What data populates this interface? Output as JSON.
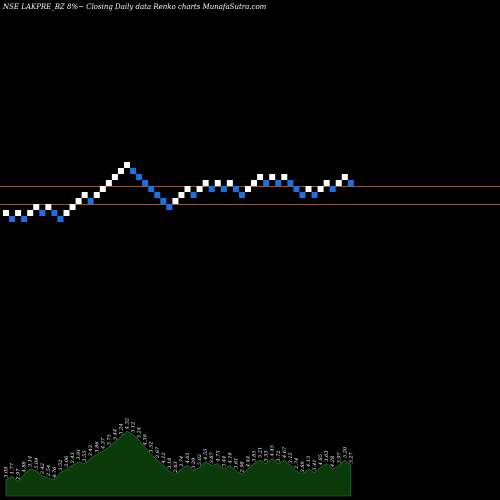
{
  "header": {
    "title": "NSE LAKPRE_BZ 8%~ Closing Daily data Renko charts MunafaSutra.com"
  },
  "colors": {
    "background": "#000000",
    "up_brick": "#ffffff",
    "down_brick": "#1e6fe0",
    "support_line": "#a0522d",
    "volume_fill": "#0a3a0a",
    "volume_stroke": "#2e7d32",
    "label": "#ffffff"
  },
  "chart_data": {
    "type": "renko",
    "title": "NSE LAKPRE_BZ 8%~ Closing Daily data Renko charts MunafaSutra.com",
    "brick_size_note": "8%",
    "bricks": [
      {
        "dir": "up",
        "level": 0
      },
      {
        "dir": "down",
        "level": -1
      },
      {
        "dir": "up",
        "level": 0
      },
      {
        "dir": "down",
        "level": -1
      },
      {
        "dir": "up",
        "level": 0
      },
      {
        "dir": "up",
        "level": 1
      },
      {
        "dir": "down",
        "level": 0
      },
      {
        "dir": "up",
        "level": 1
      },
      {
        "dir": "down",
        "level": 0
      },
      {
        "dir": "down",
        "level": -1
      },
      {
        "dir": "up",
        "level": 0
      },
      {
        "dir": "up",
        "level": 1
      },
      {
        "dir": "up",
        "level": 2
      },
      {
        "dir": "up",
        "level": 3
      },
      {
        "dir": "down",
        "level": 2
      },
      {
        "dir": "up",
        "level": 3
      },
      {
        "dir": "up",
        "level": 4
      },
      {
        "dir": "up",
        "level": 5
      },
      {
        "dir": "up",
        "level": 6
      },
      {
        "dir": "up",
        "level": 7
      },
      {
        "dir": "up",
        "level": 8
      },
      {
        "dir": "down",
        "level": 7
      },
      {
        "dir": "down",
        "level": 6
      },
      {
        "dir": "down",
        "level": 5
      },
      {
        "dir": "down",
        "level": 4
      },
      {
        "dir": "down",
        "level": 3
      },
      {
        "dir": "down",
        "level": 2
      },
      {
        "dir": "down",
        "level": 1
      },
      {
        "dir": "up",
        "level": 2
      },
      {
        "dir": "up",
        "level": 3
      },
      {
        "dir": "up",
        "level": 4
      },
      {
        "dir": "down",
        "level": 3
      },
      {
        "dir": "up",
        "level": 4
      },
      {
        "dir": "up",
        "level": 5
      },
      {
        "dir": "down",
        "level": 4
      },
      {
        "dir": "up",
        "level": 5
      },
      {
        "dir": "down",
        "level": 4
      },
      {
        "dir": "up",
        "level": 5
      },
      {
        "dir": "down",
        "level": 4
      },
      {
        "dir": "down",
        "level": 3
      },
      {
        "dir": "up",
        "level": 4
      },
      {
        "dir": "up",
        "level": 5
      },
      {
        "dir": "up",
        "level": 6
      },
      {
        "dir": "down",
        "level": 5
      },
      {
        "dir": "up",
        "level": 6
      },
      {
        "dir": "down",
        "level": 5
      },
      {
        "dir": "up",
        "level": 6
      },
      {
        "dir": "down",
        "level": 5
      },
      {
        "dir": "down",
        "level": 4
      },
      {
        "dir": "down",
        "level": 3
      },
      {
        "dir": "up",
        "level": 4
      },
      {
        "dir": "down",
        "level": 3
      },
      {
        "dir": "up",
        "level": 4
      },
      {
        "dir": "up",
        "level": 5
      },
      {
        "dir": "down",
        "level": 4
      },
      {
        "dir": "up",
        "level": 5
      },
      {
        "dir": "up",
        "level": 6
      },
      {
        "dir": "down",
        "level": 5
      }
    ],
    "reference_lines": [
      {
        "level": 5
      },
      {
        "level": 2
      }
    ],
    "volume": [
      {
        "value": 18,
        "label": "3.09"
      },
      {
        "value": 22,
        "label": "1.77"
      },
      {
        "value": 16,
        "label": "2.97"
      },
      {
        "value": 24,
        "label": "4.88"
      },
      {
        "value": 30,
        "label": "3.14"
      },
      {
        "value": 28,
        "label": "5.09"
      },
      {
        "value": 22,
        "label": "3.42"
      },
      {
        "value": 20,
        "label": "2.54"
      },
      {
        "value": 18,
        "label": "4.76"
      },
      {
        "value": 26,
        "label": "3.52"
      },
      {
        "value": 30,
        "label": "3.06"
      },
      {
        "value": 34,
        "label": "2.43"
      },
      {
        "value": 38,
        "label": "3.91"
      },
      {
        "value": 36,
        "label": "3.55"
      },
      {
        "value": 42,
        "label": "3.43"
      },
      {
        "value": 46,
        "label": "3.86"
      },
      {
        "value": 50,
        "label": "4.37"
      },
      {
        "value": 54,
        "label": "3.75"
      },
      {
        "value": 60,
        "label": "5.44"
      },
      {
        "value": 66,
        "label": "3.24"
      },
      {
        "value": 72,
        "label": "4.32"
      },
      {
        "value": 68,
        "label": "3.12"
      },
      {
        "value": 62,
        "label": "3.24"
      },
      {
        "value": 54,
        "label": "4.39"
      },
      {
        "value": 46,
        "label": "3.52"
      },
      {
        "value": 40,
        "label": "2.87"
      },
      {
        "value": 34,
        "label": "4.12"
      },
      {
        "value": 28,
        "label": "3.18"
      },
      {
        "value": 24,
        "label": "2.63"
      },
      {
        "value": 30,
        "label": "3.74"
      },
      {
        "value": 34,
        "label": "4.61"
      },
      {
        "value": 28,
        "label": "3.29"
      },
      {
        "value": 32,
        "label": "5.02"
      },
      {
        "value": 38,
        "label": "4.55"
      },
      {
        "value": 34,
        "label": "3.87"
      },
      {
        "value": 36,
        "label": "4.73"
      },
      {
        "value": 30,
        "label": "3.44"
      },
      {
        "value": 34,
        "label": "4.18"
      },
      {
        "value": 28,
        "label": "3.61"
      },
      {
        "value": 24,
        "label": "2.98"
      },
      {
        "value": 30,
        "label": "4.44"
      },
      {
        "value": 36,
        "label": "3.85"
      },
      {
        "value": 40,
        "label": "5.21"
      },
      {
        "value": 36,
        "label": "3.33"
      },
      {
        "value": 42,
        "label": "4.45"
      },
      {
        "value": 36,
        "label": "3.72"
      },
      {
        "value": 40,
        "label": "4.67"
      },
      {
        "value": 34,
        "label": "3.15"
      },
      {
        "value": 28,
        "label": "2.74"
      },
      {
        "value": 24,
        "label": "3.89"
      },
      {
        "value": 30,
        "label": "4.13"
      },
      {
        "value": 26,
        "label": "3.41"
      },
      {
        "value": 32,
        "label": "4.85"
      },
      {
        "value": 36,
        "label": "3.63"
      },
      {
        "value": 30,
        "label": "4.28"
      },
      {
        "value": 34,
        "label": "3.97"
      },
      {
        "value": 40,
        "label": "5.20"
      },
      {
        "value": 34,
        "label": "3.27"
      }
    ]
  }
}
